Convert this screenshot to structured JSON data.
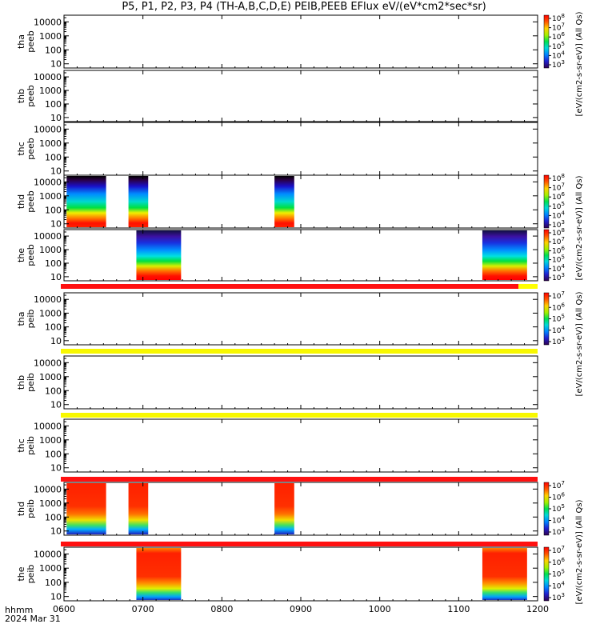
{
  "title": "P5, P1, P2, P3, P4 (TH-A,B,C,D,E) PEIB,PEEB EFlux eV/(eV*cm2*sec*sr)",
  "footer": {
    "hhmm": "hhmm",
    "date": "2024 Mar 31"
  },
  "x_ticks": [
    "0600",
    "0700",
    "0800",
    "0900",
    "1000",
    "1100",
    "1200"
  ],
  "y_ticks": [
    "10",
    "100",
    "1000",
    "10000"
  ],
  "colorbar_labels": {
    "peeb_top": "[eV/(cm2-s-sr-eV)] (All Qs)",
    "peeb_mid": "[eV/(cm2-s-sr-eV)] (All Qs)",
    "peib_top": "[eV/(cm2-s-sr-eV)] (All Qs)",
    "peib_mid": "[eV/(cm2-s-sr-eV)] (All Qs)"
  },
  "cbar_ticks_8": [
    "10^3",
    "10^4",
    "10^5",
    "10^6",
    "10^7",
    "10^8"
  ],
  "cbar_ticks_7": [
    "10^3",
    "10^4",
    "10^5",
    "10^6",
    "10^7"
  ],
  "chart_data": {
    "type": "heatmap",
    "x_range": [
      "0600",
      "1200"
    ],
    "y_scale": "log",
    "y_range_eV": [
      5,
      30000
    ],
    "panels": [
      {
        "probe": "tha",
        "instrument": "peeb",
        "intervals": []
      },
      {
        "probe": "thb",
        "instrument": "peeb",
        "intervals": []
      },
      {
        "probe": "thc",
        "instrument": "peeb",
        "intervals": []
      },
      {
        "probe": "thd",
        "instrument": "peeb",
        "intervals": [
          [
            "0602",
            "0632"
          ],
          [
            "0649",
            "0704"
          ],
          [
            "0840",
            "0855"
          ]
        ]
      },
      {
        "probe": "the",
        "instrument": "peeb",
        "intervals": [
          [
            "0655",
            "0729"
          ],
          [
            "1118",
            "1152"
          ]
        ]
      },
      {
        "probe": "tha",
        "instrument": "peib",
        "intervals": []
      },
      {
        "probe": "thb",
        "instrument": "peib",
        "intervals": []
      },
      {
        "probe": "thc",
        "instrument": "peib",
        "intervals": []
      },
      {
        "probe": "thd",
        "instrument": "peib",
        "intervals": [
          [
            "0602",
            "0632"
          ],
          [
            "0649",
            "0704"
          ],
          [
            "0840",
            "0855"
          ]
        ]
      },
      {
        "probe": "the",
        "instrument": "peib",
        "intervals": [
          [
            "0655",
            "0729"
          ],
          [
            "1118",
            "1152"
          ]
        ]
      }
    ],
    "colorbar_range_peeb": [
      "10^3",
      "10^8"
    ],
    "colorbar_range_peib": [
      "10^3",
      "10^7"
    ]
  }
}
